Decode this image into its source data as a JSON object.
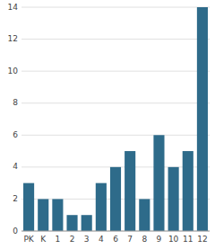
{
  "chart_data": {
    "type": "bar",
    "categories": [
      "PK",
      "K",
      "1",
      "2",
      "3",
      "4",
      "6",
      "7",
      "8",
      "9",
      "10",
      "11",
      "12"
    ],
    "values": [
      3,
      2,
      2,
      1,
      1,
      3,
      4,
      5,
      2,
      6,
      4,
      5,
      14
    ],
    "color": "#2e6b8a",
    "ylim": [
      0,
      14
    ],
    "yticks": [
      0,
      2,
      4,
      6,
      8,
      10,
      12,
      14
    ],
    "grid": true
  }
}
